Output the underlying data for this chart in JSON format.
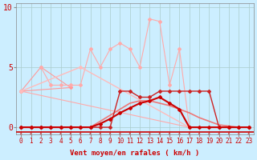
{
  "bg_color": "#cceeff",
  "grid_color": "#aacccc",
  "xlabel": "Vent moyen/en rafales ( km/h )",
  "xlim": [
    -0.5,
    23.5
  ],
  "ylim": [
    -0.6,
    10.3
  ],
  "yticks": [
    0,
    5,
    10
  ],
  "xticks": [
    0,
    1,
    2,
    3,
    4,
    5,
    6,
    7,
    8,
    9,
    10,
    11,
    12,
    13,
    14,
    15,
    16,
    17,
    18,
    19,
    20,
    21,
    22,
    23
  ],
  "lines": [
    {
      "name": "triangle_pink",
      "x": [
        0,
        2,
        5,
        0
      ],
      "y": [
        3,
        5,
        3.3,
        3
      ],
      "color": "#ff9999",
      "lw": 0.8,
      "marker": "D",
      "ms": 2.0,
      "zorder": 2
    },
    {
      "name": "big_diagonal",
      "x": [
        0,
        17
      ],
      "y": [
        3,
        0
      ],
      "color": "#ffaaaa",
      "lw": 0.8,
      "marker": "D",
      "ms": 2.0,
      "zorder": 2
    },
    {
      "name": "zigzag_light",
      "x": [
        2,
        3,
        4,
        5,
        6,
        7,
        8,
        9,
        10,
        11,
        12,
        13,
        14,
        15,
        16,
        17
      ],
      "y": [
        5,
        3.5,
        3.5,
        3.5,
        3.5,
        6.5,
        5,
        6.5,
        7,
        6.5,
        5,
        9,
        8.8,
        3.5,
        6.5,
        0
      ],
      "color": "#ffaaaa",
      "lw": 0.8,
      "marker": "D",
      "ms": 2.0,
      "zorder": 2
    },
    {
      "name": "wide_triangle",
      "x": [
        0,
        6,
        17,
        23
      ],
      "y": [
        3,
        5,
        0,
        0
      ],
      "color": "#ffbbbb",
      "lw": 1.0,
      "marker": "D",
      "ms": 2.0,
      "zorder": 3
    },
    {
      "name": "medium_curve",
      "x": [
        0,
        1,
        2,
        3,
        4,
        5,
        6,
        7,
        8,
        9,
        10,
        11,
        12,
        13,
        14,
        15,
        16,
        17,
        18,
        19,
        20,
        21,
        22,
        23
      ],
      "y": [
        0,
        0,
        0,
        0,
        0,
        0,
        0,
        0,
        0.5,
        1,
        1.5,
        2,
        2.2,
        2.2,
        2,
        1.8,
        1.5,
        1.2,
        0.8,
        0.5,
        0.2,
        0.1,
        0,
        0
      ],
      "color": "#ee7777",
      "lw": 1.2,
      "marker": null,
      "ms": 0,
      "zorder": 3
    },
    {
      "name": "dark_line",
      "x": [
        0,
        1,
        2,
        3,
        4,
        5,
        6,
        7,
        8,
        9,
        10,
        11,
        12,
        13,
        14,
        15,
        16,
        17,
        18,
        19,
        20,
        21,
        22,
        23
      ],
      "y": [
        0,
        0,
        0,
        0,
        0,
        0,
        0,
        0,
        0,
        0,
        3,
        3,
        2.5,
        2.5,
        3,
        3,
        3,
        3,
        3,
        3,
        0,
        0,
        0,
        0
      ],
      "color": "#cc2222",
      "lw": 1.0,
      "marker": "D",
      "ms": 2.0,
      "zorder": 4
    },
    {
      "name": "dark_curve",
      "x": [
        0,
        1,
        2,
        3,
        4,
        5,
        6,
        7,
        8,
        9,
        10,
        11,
        12,
        13,
        14,
        15,
        16,
        17,
        18,
        19,
        20,
        21,
        22,
        23
      ],
      "y": [
        0,
        0,
        0,
        0,
        0,
        0,
        0,
        0,
        0.3,
        0.7,
        1.2,
        1.6,
        2,
        2.2,
        2.5,
        2,
        1.5,
        0,
        0,
        0,
        0,
        0,
        0,
        0
      ],
      "color": "#cc0000",
      "lw": 1.5,
      "marker": "D",
      "ms": 2.0,
      "zorder": 5
    }
  ],
  "bottom_line_y": -0.38,
  "bottom_line_color": "#cc0000",
  "bottom_line_lw": 1.2,
  "arrow_color": "#cc4444",
  "tick_color": "#cc0000",
  "xlabel_color": "#cc0000",
  "xlabel_fontsize": 6.5,
  "ytick_fontsize": 7,
  "xtick_fontsize": 5.5
}
